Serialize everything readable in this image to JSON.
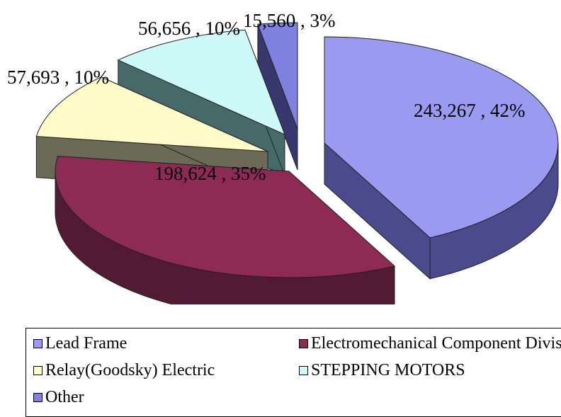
{
  "chart_data": {
    "type": "pie",
    "style": "3d-exploded",
    "categories": [
      "Lead Frame",
      "Electromechanical Component Division",
      "Relay(Goodsky) Electric",
      "STEPPING MOTORS",
      "Other"
    ],
    "values": [
      243267,
      198624,
      57693,
      56656,
      15560
    ],
    "percents": [
      42,
      35,
      10,
      10,
      3
    ],
    "data_labels": [
      "243,267 , 42%",
      "198,624 , 35%",
      "57,693 , 10%",
      "56,656 , 10%",
      "15,560 , 3%"
    ],
    "colors": [
      "#9a9af0",
      "#8e2b55",
      "#fffac8",
      "#cdfaf8",
      "#8080e0"
    ],
    "side_colors": [
      "#4a4a8c",
      "#521a33",
      "#6a6a56",
      "#466a6a",
      "#38386e"
    ],
    "legend_position": "bottom",
    "legend": [
      {
        "label": "Lead Frame",
        "color": "#9a9af0"
      },
      {
        "label": "Electromechanical Component Division",
        "color": "#8e2b55"
      },
      {
        "label": "Relay(Goodsky) Electric",
        "color": "#fffac8"
      },
      {
        "label": "STEPPING MOTORS",
        "color": "#cdfaf8"
      },
      {
        "label": "Other",
        "color": "#8080e0"
      }
    ]
  }
}
